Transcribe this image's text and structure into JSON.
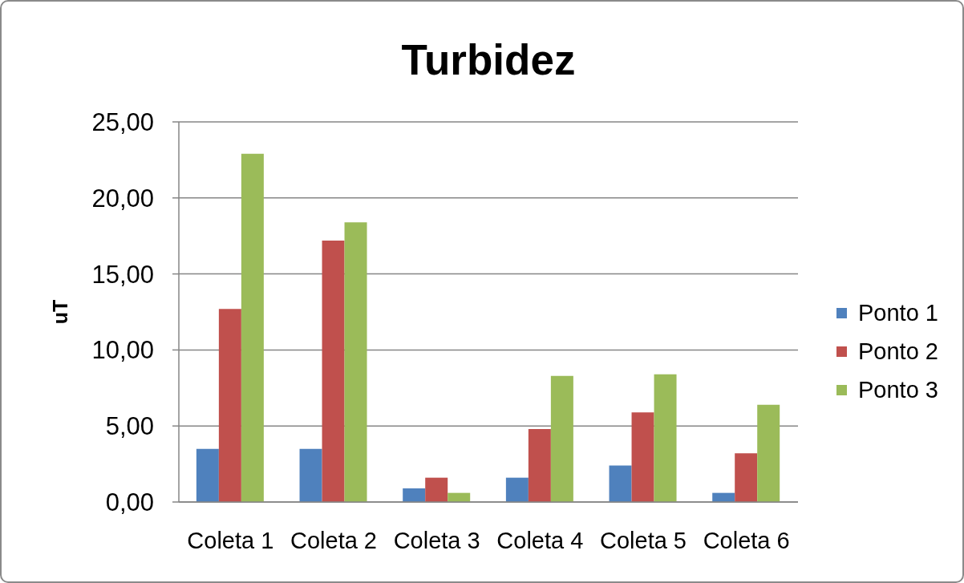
{
  "chart_data": {
    "type": "bar",
    "title": "Turbidez",
    "ylabel": "uT",
    "categories": [
      "Coleta 1",
      "Coleta 2",
      "Coleta 3",
      "Coleta 4",
      "Coleta 5",
      "Coleta 6"
    ],
    "series": [
      {
        "name": "Ponto 1",
        "color": "#4f81bd",
        "values": [
          3.5,
          3.5,
          0.9,
          1.6,
          2.4,
          0.6
        ]
      },
      {
        "name": "Ponto 2",
        "color": "#c0504d",
        "values": [
          12.7,
          17.2,
          1.6,
          4.8,
          5.9,
          3.2
        ]
      },
      {
        "name": "Ponto 3",
        "color": "#9bbb59",
        "values": [
          22.9,
          18.4,
          0.6,
          8.3,
          8.4,
          6.4
        ]
      }
    ],
    "ylim": [
      0,
      25
    ],
    "yticks": [
      {
        "value": 0,
        "label": "0,00"
      },
      {
        "value": 5,
        "label": "5,00"
      },
      {
        "value": 10,
        "label": "10,00"
      },
      {
        "value": 15,
        "label": "15,00"
      },
      {
        "value": 20,
        "label": "20,00"
      },
      {
        "value": 25,
        "label": "25,00"
      }
    ],
    "grid": "y",
    "legend": "right"
  }
}
